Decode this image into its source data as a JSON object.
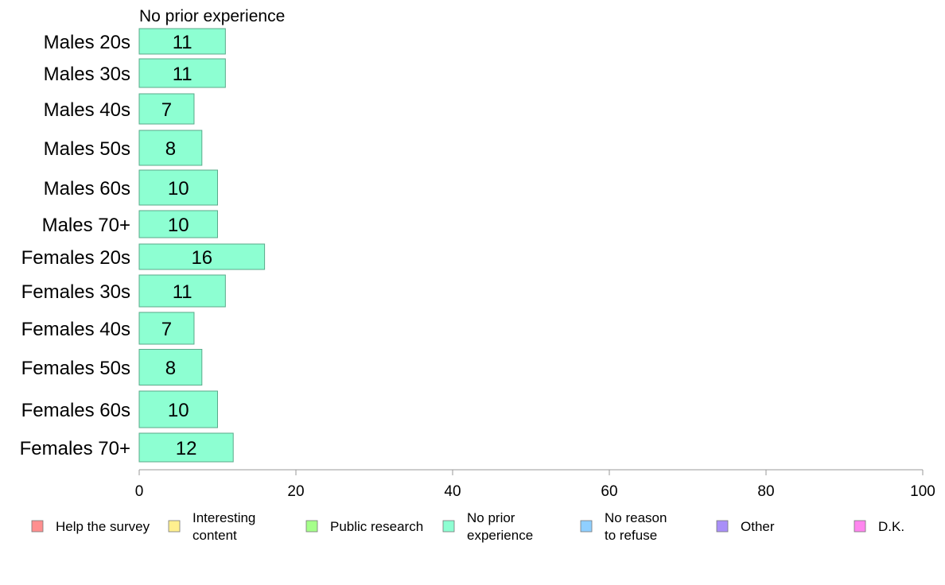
{
  "chart_data": {
    "type": "bar",
    "orientation": "horizontal",
    "title": "No prior experience",
    "categories": [
      "Males 20s",
      "Males 30s",
      "Males 40s",
      "Males 50s",
      "Males 60s",
      "Males 70+",
      "Females 20s",
      "Females 30s",
      "Females 40s",
      "Females 50s",
      "Females 60s",
      "Females 70+"
    ],
    "series": [
      {
        "name": "No prior experience",
        "values": [
          11,
          11,
          7,
          8,
          10,
          10,
          16,
          11,
          7,
          8,
          10,
          12
        ],
        "color": "#8dffd2"
      }
    ],
    "data_labels": [
      "11",
      "11",
      "7",
      "8",
      "10",
      "10",
      "16",
      "11",
      "7",
      "8",
      "10",
      "12"
    ],
    "xlim": [
      0,
      100
    ],
    "xticks": [
      0,
      20,
      40,
      60,
      80,
      100
    ],
    "xtick_labels": [
      "0",
      "20",
      "40",
      "60",
      "80",
      "100"
    ],
    "grid": false,
    "legend_position": "bottom",
    "legend": [
      {
        "lines": [
          "Help the survey"
        ],
        "color": "#ff8f8f"
      },
      {
        "lines": [
          "Interesting",
          "content"
        ],
        "color": "#fff08f"
      },
      {
        "lines": [
          "Public research"
        ],
        "color": "#a5ff8a"
      },
      {
        "lines": [
          "No prior",
          "experience"
        ],
        "color": "#8dffd2"
      },
      {
        "lines": [
          "No reason",
          "to refuse"
        ],
        "color": "#8fcfff"
      },
      {
        "lines": [
          "Other"
        ],
        "color": "#a98ff8"
      },
      {
        "lines": [
          "D.K."
        ],
        "color": "#ff86ef"
      }
    ]
  }
}
